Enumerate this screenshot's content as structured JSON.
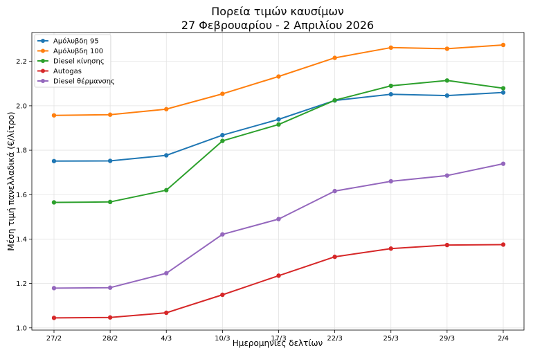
{
  "chart_data": {
    "type": "line",
    "title": "Πορεία τιμών καυσίμων",
    "subtitle": "27 Φεβρουαρίου - 2 Απριλίου 2026",
    "xlabel": "Ημερομηνίες δελτίων",
    "ylabel": "Μέση τιμή πανελλαδικά (€/λίτρο)",
    "categories": [
      "27/2",
      "28/2",
      "4/3",
      "10/3",
      "17/3",
      "22/3",
      "25/3",
      "29/3",
      "2/4"
    ],
    "ylim": [
      0.99,
      2.33
    ],
    "yticks": [
      "1.0",
      "1.2",
      "1.4",
      "1.6",
      "1.8",
      "2.0",
      "2.2"
    ],
    "grid": true,
    "legend_position": "top-left",
    "series": [
      {
        "name": "Αμόλυβδη 95",
        "color": "#1f77b4",
        "values": [
          1.751,
          1.752,
          1.777,
          1.868,
          1.939,
          2.024,
          2.052,
          2.046,
          2.06
        ]
      },
      {
        "name": "Αμόλυβδη 100",
        "color": "#ff7f0e",
        "values": [
          1.957,
          1.96,
          1.985,
          2.054,
          2.132,
          2.216,
          2.262,
          2.257,
          2.274
        ]
      },
      {
        "name": "Diesel κίνησης",
        "color": "#2ca02c",
        "values": [
          1.565,
          1.567,
          1.62,
          1.842,
          1.916,
          2.025,
          2.09,
          2.114,
          2.079
        ]
      },
      {
        "name": "Autogas",
        "color": "#d62728",
        "values": [
          1.045,
          1.047,
          1.068,
          1.149,
          1.235,
          1.32,
          1.357,
          1.373,
          1.375
        ]
      },
      {
        "name": "Diesel θέρμανσης",
        "color": "#9467bd",
        "values": [
          1.179,
          1.181,
          1.246,
          1.421,
          1.49,
          1.616,
          1.66,
          1.686,
          1.739
        ]
      }
    ]
  }
}
